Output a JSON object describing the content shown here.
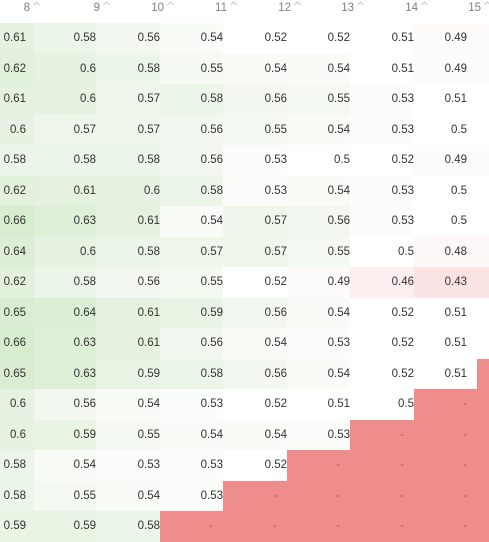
{
  "table": {
    "columns": [
      "8",
      "9",
      "10",
      "11",
      "12",
      "13",
      "14",
      "15"
    ],
    "rows": [
      [
        "0.61",
        "0.58",
        "0.56",
        "0.54",
        "0.52",
        "0.52",
        "0.51",
        "0.49"
      ],
      [
        "0.62",
        "0.6",
        "0.58",
        "0.55",
        "0.54",
        "0.54",
        "0.51",
        "0.49"
      ],
      [
        "0.61",
        "0.6",
        "0.57",
        "0.58",
        "0.56",
        "0.55",
        "0.53",
        "0.51"
      ],
      [
        "0.6",
        "0.57",
        "0.57",
        "0.56",
        "0.55",
        "0.54",
        "0.53",
        "0.5"
      ],
      [
        "0.58",
        "0.58",
        "0.58",
        "0.56",
        "0.53",
        "0.5",
        "0.52",
        "0.49"
      ],
      [
        "0.62",
        "0.61",
        "0.6",
        "0.58",
        "0.53",
        "0.54",
        "0.53",
        "0.5"
      ],
      [
        "0.66",
        "0.63",
        "0.61",
        "0.54",
        "0.57",
        "0.56",
        "0.53",
        "0.5"
      ],
      [
        "0.64",
        "0.6",
        "0.58",
        "0.57",
        "0.57",
        "0.55",
        "0.5",
        "0.48"
      ],
      [
        "0.62",
        "0.58",
        "0.56",
        "0.55",
        "0.52",
        "0.49",
        "0.46",
        "0.43"
      ],
      [
        "0.65",
        "0.64",
        "0.61",
        "0.59",
        "0.56",
        "0.54",
        "0.52",
        "0.51"
      ],
      [
        "0.66",
        "0.63",
        "0.61",
        "0.56",
        "0.54",
        "0.53",
        "0.52",
        "0.51"
      ],
      [
        "0.65",
        "0.63",
        "0.59",
        "0.58",
        "0.56",
        "0.54",
        "0.52",
        "0.51"
      ],
      [
        "0.6",
        "0.56",
        "0.54",
        "0.53",
        "0.52",
        "0.51",
        "0.5",
        "-"
      ],
      [
        "0.6",
        "0.59",
        "0.55",
        "0.54",
        "0.54",
        "0.53",
        "-",
        "-"
      ],
      [
        "0.58",
        "0.54",
        "0.53",
        "0.53",
        "0.52",
        "-",
        "-",
        "-"
      ],
      [
        "0.58",
        "0.55",
        "0.54",
        "0.53",
        "-",
        "-",
        "-",
        "-"
      ],
      [
        "0.59",
        "0.59",
        "0.58",
        "-",
        "-",
        "-",
        "-",
        "-"
      ]
    ],
    "sort_icon": "sort-caret-icon",
    "colors": {
      "high": "#d8ecd0",
      "mid": "#ffffff",
      "low": "#fbe3e3",
      "missing": "#ef8c8c"
    }
  }
}
